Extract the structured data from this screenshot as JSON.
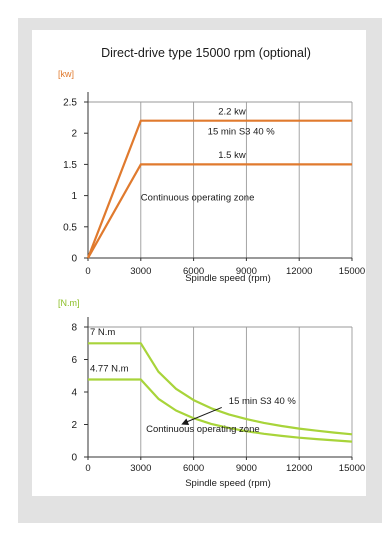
{
  "colors": {
    "panel_bg": "#e2e2e2",
    "card_bg": "#ffffff",
    "power_series": "#e07a2e",
    "torque_series": "#a8d43a",
    "unit_power": "#e07a2e",
    "unit_torque": "#8cbf26",
    "axis": "#333333",
    "grid": "#9a9a9a",
    "text": "#1a1a1a"
  },
  "chart_data": [
    {
      "type": "line",
      "title": "Direct-drive type 15000 rpm (optional)",
      "ylabel": "[kw]",
      "xlabel": "Spindle speed (rpm)",
      "xlim": [
        0,
        15000
      ],
      "ylim": [
        0,
        2.5
      ],
      "xticks": [
        "0",
        "3000",
        "6000",
        "9000",
        "12000",
        "15000"
      ],
      "yticks": [
        "0",
        "0.5",
        "1",
        "1.5",
        "2",
        "2.5"
      ],
      "grid": true,
      "series": [
        {
          "name": "15 min S3 40 %",
          "color": "#e07a2e",
          "x": [
            0,
            3000,
            15000
          ],
          "y": [
            0,
            2.2,
            2.2
          ]
        },
        {
          "name": "Continuous operating zone",
          "color": "#e07a2e",
          "x": [
            0,
            3000,
            15000
          ],
          "y": [
            0,
            1.5,
            1.5
          ]
        }
      ],
      "annotations": [
        {
          "text": "2.2 kw",
          "x": 7400,
          "y": 2.3
        },
        {
          "text": "15 min S3 40 %",
          "x": 6800,
          "y": 1.98
        },
        {
          "text": "1.5 kw",
          "x": 7400,
          "y": 1.6
        },
        {
          "text": "Continuous operating zone",
          "x": 3000,
          "y": 0.92
        }
      ]
    },
    {
      "type": "line",
      "ylabel": "[N.m]",
      "xlabel": "Spindle speed (rpm)",
      "xlim": [
        0,
        15000
      ],
      "ylim": [
        0,
        8
      ],
      "xticks": [
        "0",
        "3000",
        "6000",
        "9000",
        "12000",
        "15000"
      ],
      "yticks": [
        "0",
        "2",
        "4",
        "6",
        "8"
      ],
      "grid": true,
      "series": [
        {
          "name": "15 min S3 40 %",
          "color": "#a8d43a",
          "x": [
            0,
            3000,
            4000,
            5000,
            6000,
            7000,
            8000,
            9000,
            10000,
            11000,
            12000,
            13000,
            14000,
            15000
          ],
          "y": [
            7,
            7,
            5.25,
            4.2,
            3.5,
            3.0,
            2.62,
            2.33,
            2.1,
            1.91,
            1.75,
            1.62,
            1.5,
            1.4
          ]
        },
        {
          "name": "Continuous operating zone",
          "color": "#a8d43a",
          "x": [
            0,
            3000,
            4000,
            5000,
            6000,
            7000,
            8000,
            9000,
            10000,
            11000,
            12000,
            13000,
            14000,
            15000
          ],
          "y": [
            4.77,
            4.77,
            3.58,
            2.86,
            2.39,
            2.04,
            1.79,
            1.59,
            1.43,
            1.3,
            1.19,
            1.1,
            1.02,
            0.95
          ]
        }
      ],
      "annotations": [
        {
          "text": "7 N.m",
          "x": 0,
          "y": 7.5
        },
        {
          "text": "4.77 N.m",
          "x": 0,
          "y": 5.25
        },
        {
          "text": "15 min S3 40 %",
          "x": 8000,
          "y": 3.25
        },
        {
          "text": "Continuous operating zone",
          "x": 3300,
          "y": 1.55
        }
      ]
    }
  ]
}
